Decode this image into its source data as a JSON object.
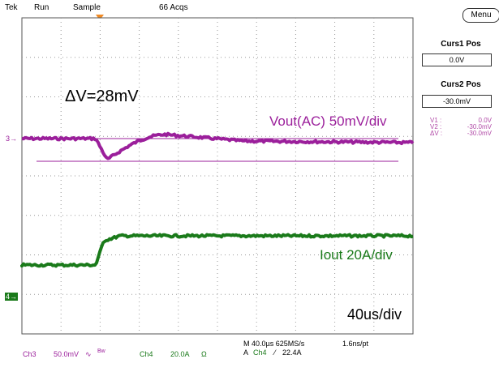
{
  "header": {
    "brand": "Tek",
    "run_state": "Run",
    "acq_mode": "Sample",
    "acq_count": "66 Acqs"
  },
  "annotations": {
    "delta_v": "ΔV=28mV",
    "ch3_label": "Vout(AC) 50mV/div",
    "ch4_label": "Iout 20A/div",
    "timebase": "40us/div"
  },
  "side_menu": {
    "menu_label": "Menu",
    "curs1_title": "Curs1 Pos",
    "curs1_value": "0.0V",
    "curs2_title": "Curs2 Pos",
    "curs2_value": "-30.0mV",
    "readout": {
      "v1_label": "V1 :",
      "v1_value": "0.0V",
      "v2_label": "V2 :",
      "v2_value": "-30.0mV",
      "dv_label": "ΔV :",
      "dv_value": "-30.0mV"
    }
  },
  "channels": {
    "ch3_marker": "3",
    "ch4_marker": "4"
  },
  "bottom": {
    "ch3_name": "Ch3",
    "ch3_scale": "50.0mV",
    "ch3_coupling": "∿",
    "ch3_bw": "Bw",
    "ch4_name": "Ch4",
    "ch4_scale": "20.0A",
    "ch4_impedance": "Ω",
    "horizontal": "M 40.0µs 625MS/s",
    "sample_interval": "1.6ns/pt",
    "trigger_source": "A",
    "trigger_channel": "Ch4",
    "trigger_slope": "⁄",
    "trigger_level": "22.4A"
  },
  "colors": {
    "ch3": "#9b1f9b",
    "ch4": "#1a7a1a",
    "trigger_marker": "#f08a24",
    "grid": "#9a9a9a"
  }
}
